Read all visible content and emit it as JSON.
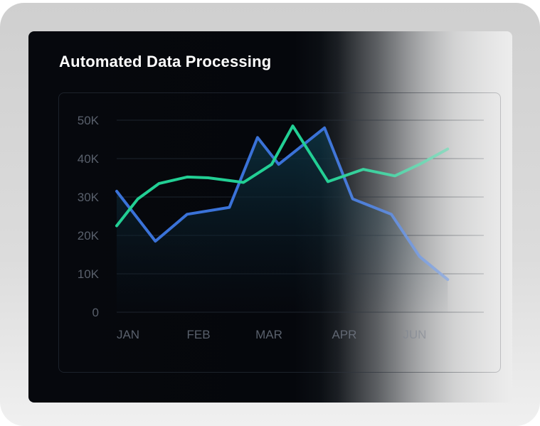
{
  "title": "Automated Data Processing",
  "colors": {
    "series_blue": "#3a72d8",
    "series_green": "#22cf94",
    "grid": "#1d242d",
    "tick_label": "#59606c"
  },
  "chart_data": {
    "type": "line",
    "title": "Automated Data Processing",
    "xlabel": "",
    "ylabel": "",
    "x_ticks": [
      "JAN",
      "FEB",
      "MAR",
      "APR",
      "JUN"
    ],
    "y_ticks": [
      "0",
      "10K",
      "20K",
      "30K",
      "40K",
      "50K"
    ],
    "ylim": [
      0,
      50000
    ],
    "grid": true,
    "series": [
      {
        "color": "#3a72d8",
        "area": true,
        "x": [
          0,
          0.55,
          1.0,
          1.6,
          2.0,
          2.3,
          2.95,
          3.35,
          3.9,
          4.3,
          4.7
        ],
        "y": [
          31500,
          18500,
          25500,
          27300,
          45500,
          38500,
          48000,
          29500,
          25500,
          14500,
          8500
        ]
      },
      {
        "color": "#22cf94",
        "area": false,
        "x": [
          0,
          0.3,
          0.6,
          1.0,
          1.3,
          1.8,
          2.2,
          2.5,
          3.0,
          3.5,
          3.95,
          4.3,
          4.7
        ],
        "y": [
          22500,
          29500,
          33500,
          35200,
          35000,
          33800,
          38500,
          48500,
          34000,
          37200,
          35500,
          38500,
          42500
        ]
      }
    ]
  }
}
